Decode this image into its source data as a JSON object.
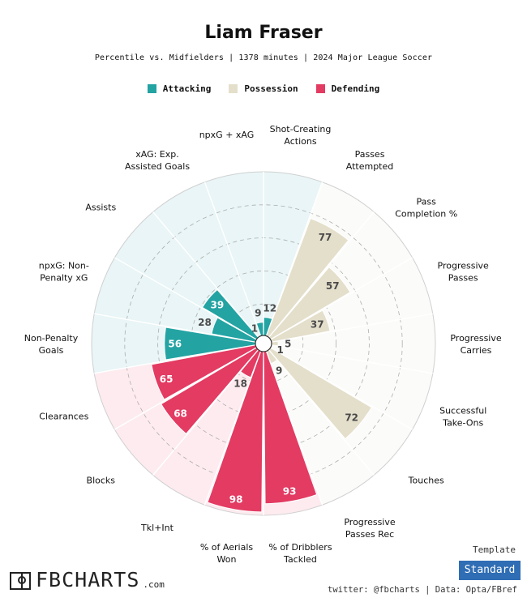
{
  "header": {
    "title": "Liam Fraser",
    "subtitle": "Percentile vs. Midfielders | 1378 minutes | 2024 Major League Soccer"
  },
  "legend": [
    {
      "name": "Attacking",
      "color": "#24a3a3"
    },
    {
      "name": "Possession",
      "color": "#e4dfcb"
    },
    {
      "name": "Defending",
      "color": "#e33b62"
    }
  ],
  "chart_data": {
    "type": "radar-bar",
    "title": "Liam Fraser",
    "range": [
      0,
      100
    ],
    "categories": [
      "Shot-Creating Actions",
      "Passes Attempted",
      "Pass Completion %",
      "Progressive Passes",
      "Progressive Carries",
      "Successful Take-Ons",
      "Touches",
      "Progressive Passes Rec",
      "% of Dribblers Tackled",
      "% of Aerials Won",
      "Tkl+Int",
      "Blocks",
      "Clearances",
      "Non-Penalty Goals",
      "npxG: Non-Penalty xG",
      "Assists",
      "xAG: Exp. Assisted Goals",
      "npxG + xAG"
    ],
    "series": [
      {
        "name": "Attacking",
        "color": "#24a3a3",
        "background": "#e9f5f6",
        "values": {
          "Non-Penalty Goals": 56,
          "npxG: Non-Penalty xG": 28,
          "Assists": 39,
          "xAG: Exp. Assisted Goals": 1,
          "npxG + xAG": 9,
          "Shot-Creating Actions": 12
        }
      },
      {
        "name": "Possession",
        "color": "#e4dfcb",
        "background": "#fbfbf9",
        "values": {
          "Passes Attempted": 77,
          "Pass Completion %": 57,
          "Progressive Passes": 37,
          "Progressive Carries": 5,
          "Successful Take-Ons": 1,
          "Touches": 72,
          "Progressive Passes Rec": 9
        }
      },
      {
        "name": "Defending",
        "color": "#e33b62",
        "background": "#fdebef",
        "values": {
          "% of Dribblers Tackled": 93,
          "% of Aerials Won": 98,
          "Tkl+Int": 18,
          "Blocks": 68,
          "Clearances": 65
        }
      }
    ],
    "slices": [
      {
        "label": "Shot-Creating\nActions",
        "group": "Attacking",
        "value": 12
      },
      {
        "label": "Passes\nAttempted",
        "group": "Possession",
        "value": 77
      },
      {
        "label": "Pass\nCompletion %",
        "group": "Possession",
        "value": 57
      },
      {
        "label": "Progressive\nPasses",
        "group": "Possession",
        "value": 37
      },
      {
        "label": "Progressive\nCarries",
        "group": "Possession",
        "value": 5
      },
      {
        "label": "Successful\nTake-Ons",
        "group": "Possession",
        "value": 1
      },
      {
        "label": "Touches",
        "group": "Possession",
        "value": 72
      },
      {
        "label": "Progressive\nPasses Rec",
        "group": "Possession",
        "value": 9
      },
      {
        "label": "% of Dribblers\nTackled",
        "group": "Defending",
        "value": 93
      },
      {
        "label": "% of Aerials\nWon",
        "group": "Defending",
        "value": 98
      },
      {
        "label": "Tkl+Int",
        "group": "Defending",
        "value": 18
      },
      {
        "label": "Blocks",
        "group": "Defending",
        "value": 68
      },
      {
        "label": "Clearances",
        "group": "Defending",
        "value": 65
      },
      {
        "label": "Non-Penalty\nGoals",
        "group": "Attacking",
        "value": 56
      },
      {
        "label": "npxG: Non-\nPenalty xG",
        "group": "Attacking",
        "value": 28
      },
      {
        "label": "Assists",
        "group": "Attacking",
        "value": 39
      },
      {
        "label": "xAG: Exp.\nAssisted Goals",
        "group": "Attacking",
        "value": 1
      },
      {
        "label": "npxG + xAG",
        "group": "Attacking",
        "value": 9
      }
    ]
  },
  "footer": {
    "logo_text": "FBCHARTS",
    "logo_suffix": ".com",
    "template_label": "Template",
    "template_value": "Standard",
    "credit": "twitter: @fbcharts | Data: Opta/FBref"
  }
}
